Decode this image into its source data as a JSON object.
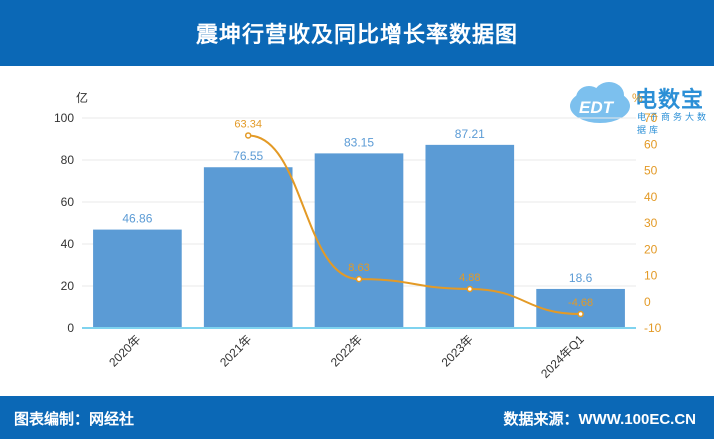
{
  "title": "震坤行营收及同比增长率数据图",
  "footer": {
    "left": "图表编制：网经社",
    "right": "数据来源：WWW.100EC.CN"
  },
  "logo": {
    "brand": "电数宝",
    "sub": "电子商务大数据库",
    "badge": "EDT"
  },
  "colors": {
    "header": "#0b68b6",
    "bar": "#5b9bd5",
    "line": "#e39a26",
    "bar_label": "#5b9bd5",
    "line_label": "#e39a26"
  },
  "chart_data": {
    "type": "bar",
    "categories": [
      "2020年",
      "2021年",
      "2022年",
      "2023年",
      "2024年Q1"
    ],
    "series": [
      {
        "type": "bar",
        "axis": "left",
        "values": [
          46.86,
          76.55,
          83.15,
          87.21,
          18.6
        ]
      },
      {
        "type": "line",
        "axis": "right",
        "values": [
          null,
          63.34,
          8.63,
          4.88,
          -4.68
        ]
      }
    ],
    "ylabel": "亿",
    "y2label": "%",
    "ylim": [
      0,
      100
    ],
    "y2lim": [
      -10,
      70
    ],
    "yticks": [
      0,
      20,
      40,
      60,
      80,
      100
    ],
    "y2ticks": [
      -10,
      0,
      10,
      20,
      30,
      40,
      50,
      60,
      70
    ],
    "grid": true
  }
}
